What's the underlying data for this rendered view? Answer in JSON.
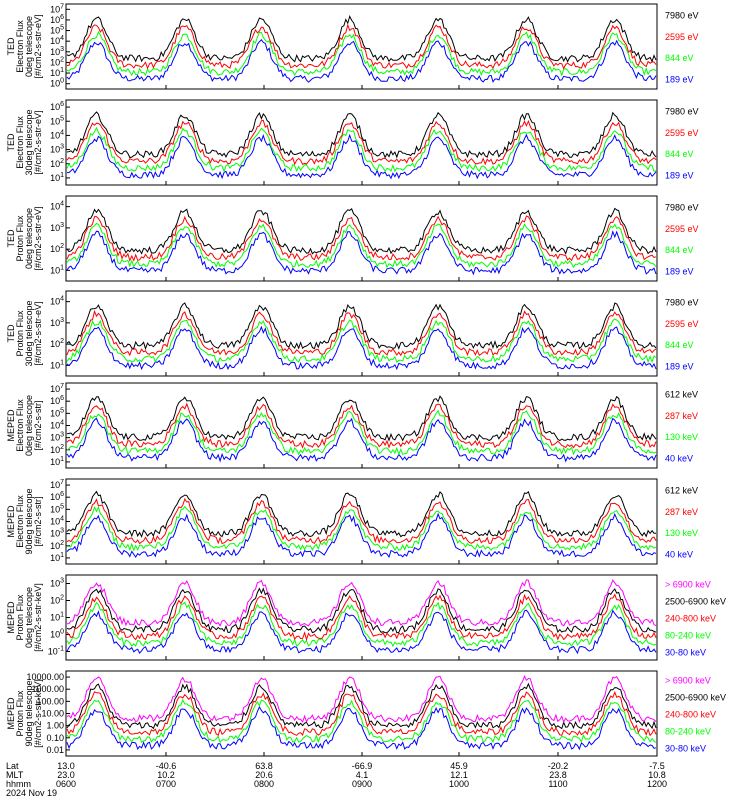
{
  "colors": {
    "black": "#000000",
    "red": "#ff0000",
    "green": "#00ff00",
    "blue": "#0000ff",
    "magenta": "#ff00ff"
  },
  "chart_data": [
    {
      "type": "line",
      "ylabel": [
        "TED",
        "Electron Flux",
        "0deg telescope",
        "[#/cm2-s-str-eV]"
      ],
      "y_tick_labels": [
        "10^0",
        "10^1",
        "10^2",
        "10^3",
        "10^4",
        "10^5",
        "10^6",
        "10^7"
      ],
      "ylim_log10": [
        0,
        7
      ],
      "legend": [
        {
          "label": "7980 eV",
          "color": "#000000"
        },
        {
          "label": "2595 eV",
          "color": "#ff0000"
        },
        {
          "label": "844 eV",
          "color": "#00ff00"
        },
        {
          "label": "189 eV",
          "color": "#0000ff"
        }
      ]
    },
    {
      "type": "line",
      "ylabel": [
        "TED",
        "Electron Flux",
        "30deg telescope",
        "[#/cm2-s-str-eV]"
      ],
      "y_tick_labels": [
        "10^1",
        "10^2",
        "10^3",
        "10^4",
        "10^5",
        "10^6"
      ],
      "ylim_log10": [
        0.6,
        6.6
      ],
      "legend": [
        {
          "label": "7980 eV",
          "color": "#000000"
        },
        {
          "label": "2595 eV",
          "color": "#ff0000"
        },
        {
          "label": "844 eV",
          "color": "#00ff00"
        },
        {
          "label": "189 eV",
          "color": "#0000ff"
        }
      ]
    },
    {
      "type": "line",
      "ylabel": [
        "TED",
        "Proton Flux",
        "0deg telescope",
        "[#/cm2-s-str-eV]"
      ],
      "y_tick_labels": [
        "10^1",
        "10^2",
        "10^3",
        "10^4"
      ],
      "ylim_log10": [
        0.5,
        4.9
      ],
      "legend": [
        {
          "label": "7980 eV",
          "color": "#000000"
        },
        {
          "label": "2595 eV",
          "color": "#ff0000"
        },
        {
          "label": "844 eV",
          "color": "#00ff00"
        },
        {
          "label": "189 eV",
          "color": "#0000ff"
        }
      ]
    },
    {
      "type": "line",
      "ylabel": [
        "TED",
        "Proton Flux",
        "30deg telescope",
        "[#/cm2-s-str-eV]"
      ],
      "y_tick_labels": [
        "10^1",
        "10^2",
        "10^3",
        "10^4"
      ],
      "ylim_log10": [
        0.5,
        4.9
      ],
      "legend": [
        {
          "label": "7980 eV",
          "color": "#000000"
        },
        {
          "label": "2595 eV",
          "color": "#ff0000"
        },
        {
          "label": "844 eV",
          "color": "#00ff00"
        },
        {
          "label": "189 eV",
          "color": "#0000ff"
        }
      ]
    },
    {
      "type": "line",
      "ylabel": [
        "MEPED",
        "Electron Flux",
        "0deg telescope",
        "[#/cm2-s-str]"
      ],
      "y_tick_labels": [
        "10^1",
        "10^2",
        "10^3",
        "10^4",
        "10^5",
        "10^6",
        "10^7"
      ],
      "ylim_log10": [
        1,
        7
      ],
      "legend": [
        {
          "label": "612 keV",
          "color": "#000000"
        },
        {
          "label": "287 keV",
          "color": "#ff0000"
        },
        {
          "label": "130 keV",
          "color": "#00ff00"
        },
        {
          "label": "40 keV",
          "color": "#0000ff"
        }
      ]
    },
    {
      "type": "line",
      "ylabel": [
        "MEPED",
        "Electron Flux",
        "90deg telescope",
        "[#/cm2-s-str]"
      ],
      "y_tick_labels": [
        "10^1",
        "10^2",
        "10^3",
        "10^4",
        "10^5",
        "10^6",
        "10^7"
      ],
      "ylim_log10": [
        1,
        7
      ],
      "legend": [
        {
          "label": "612 keV",
          "color": "#000000"
        },
        {
          "label": "287 keV",
          "color": "#ff0000"
        },
        {
          "label": "130 keV",
          "color": "#00ff00"
        },
        {
          "label": "40 keV",
          "color": "#0000ff"
        }
      ]
    },
    {
      "type": "line",
      "ylabel": [
        "MEPED",
        "Proton Flux",
        "0deg telescope",
        "[#/cm2-s-str-keV]"
      ],
      "y_tick_labels": [
        "10^-1",
        "10^0",
        "10^1",
        "10^2",
        "10^3"
      ],
      "ylim_log10": [
        -1.6,
        3.6
      ],
      "legend": [
        {
          "label": "> 6900 keV",
          "color": "#ff00ff"
        },
        {
          "label": "2500-6900 keV",
          "color": "#000000"
        },
        {
          "label": "240-800 keV",
          "color": "#ff0000"
        },
        {
          "label": "80-240 keV",
          "color": "#00ff00"
        },
        {
          "label": "30-80 keV",
          "color": "#0000ff"
        }
      ]
    },
    {
      "type": "line",
      "ylabel": [
        "MEPED",
        "Proton Flux",
        "90deg telescope",
        "[#/cm2-s-str-keV]"
      ],
      "y_tick_labels": [
        "0.01",
        "0.10",
        "1.00",
        "10.00",
        "100.00",
        "1000.00",
        "10000.00"
      ],
      "ylim_log10": [
        -2,
        4
      ],
      "legend": [
        {
          "label": "> 6900 keV",
          "color": "#ff00ff"
        },
        {
          "label": "2500-6900 keV",
          "color": "#000000"
        },
        {
          "label": "240-800 keV",
          "color": "#ff0000"
        },
        {
          "label": "80-240 keV",
          "color": "#00ff00"
        },
        {
          "label": "30-80 keV",
          "color": "#0000ff"
        }
      ]
    }
  ],
  "footer": {
    "row_labels": [
      "Lat",
      "MLT",
      "hhmm",
      "2024 Nov 19"
    ],
    "ticks": [
      {
        "lat": "13.0",
        "mlt": "23.0",
        "hhmm": "0600"
      },
      {
        "lat": "-40.6",
        "mlt": "10.2",
        "hhmm": "0700"
      },
      {
        "lat": "63.8",
        "mlt": "20.6",
        "hhmm": "0800"
      },
      {
        "lat": "-66.9",
        "mlt": "4.1",
        "hhmm": "0900"
      },
      {
        "lat": "45.9",
        "mlt": "12.1",
        "hhmm": "1000"
      },
      {
        "lat": "-20.2",
        "mlt": "23.8",
        "hhmm": "1100"
      },
      {
        "lat": "-7.5",
        "mlt": "10.8",
        "hhmm": "1200"
      }
    ]
  }
}
